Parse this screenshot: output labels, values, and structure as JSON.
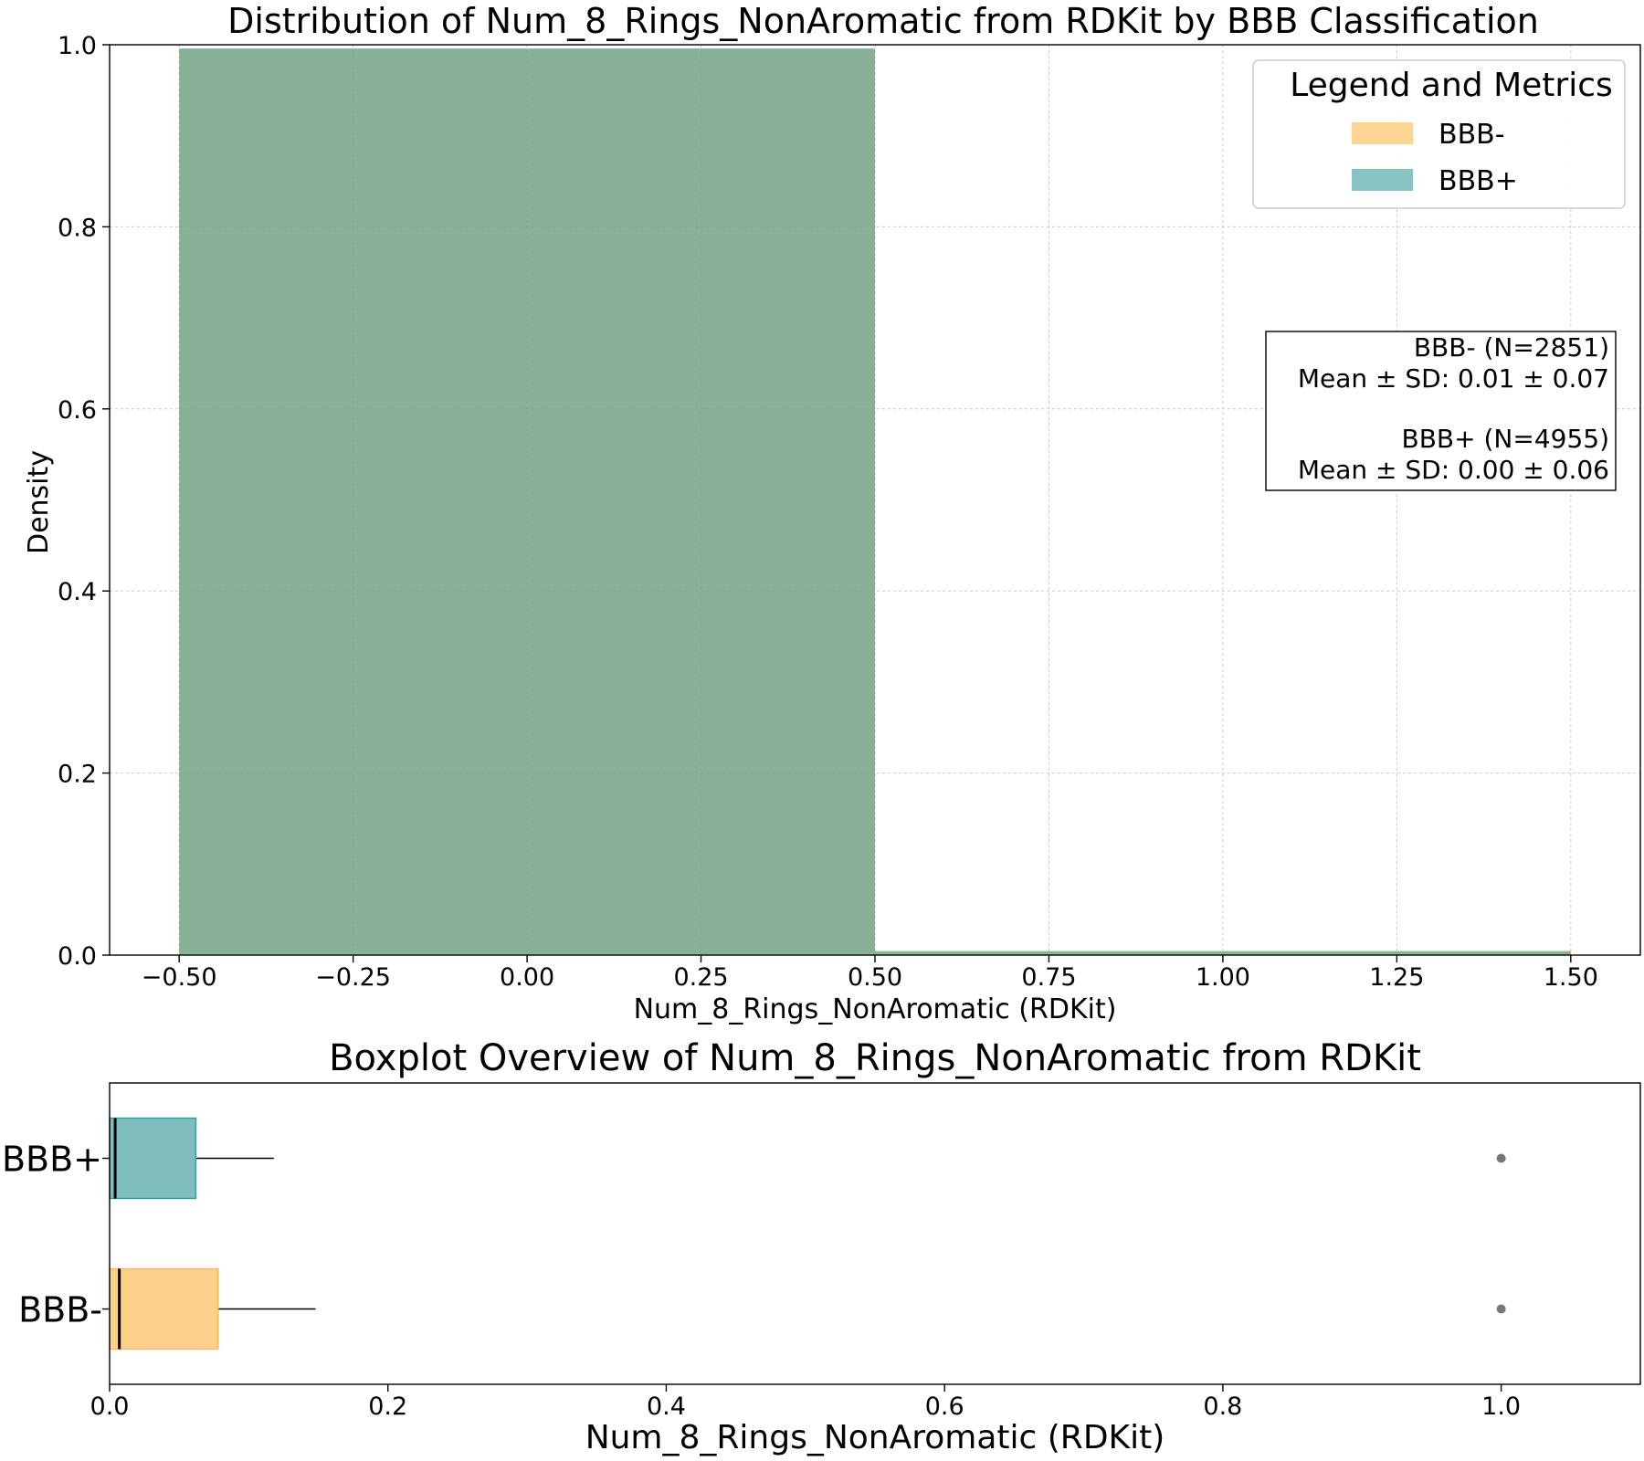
{
  "colors": {
    "bbb_minus": "#fdb94d",
    "bbb_plus": "#3a9a9b",
    "overlap": "#80a87e",
    "flier": "#777777",
    "text": "#000000"
  },
  "chart_data": [
    {
      "type": "histogram",
      "title": "Distribution of Num_8_Rings_NonAromatic from RDKit by BBB Classification",
      "xlabel": "Num_8_Rings_NonAromatic (RDKit)",
      "ylabel": "Density",
      "xlim": [
        -0.6,
        1.6
      ],
      "ylim": [
        0,
        1.0
      ],
      "xticks": [
        -0.5,
        -0.25,
        0.0,
        0.25,
        0.5,
        0.75,
        1.0,
        1.25,
        1.5
      ],
      "xtick_labels": [
        "−0.50",
        "−0.25",
        "0.00",
        "0.25",
        "0.50",
        "0.75",
        "1.00",
        "1.25",
        "1.50"
      ],
      "yticks": [
        0.0,
        0.2,
        0.4,
        0.6,
        0.8,
        1.0
      ],
      "ytick_labels": [
        "0.0",
        "0.2",
        "0.4",
        "0.6",
        "0.8",
        "1.0"
      ],
      "grid": true,
      "bin_edges": [
        -0.5,
        0.5,
        1.5
      ],
      "series": [
        {
          "name": "BBB-",
          "color": "#fdb94d",
          "density": [
            0.995,
            0.005
          ]
        },
        {
          "name": "BBB+",
          "color": "#3a9a9b",
          "density": [
            0.996,
            0.004
          ]
        }
      ],
      "legend": {
        "title": "Legend and Metrics",
        "placement": "top-right",
        "entries": [
          "BBB-",
          "BBB+"
        ]
      },
      "metrics_box": {
        "placement": "right",
        "lines": [
          "BBB- (N=2851)",
          "Mean ± SD: 0.01 ± 0.07",
          "",
          "BBB+ (N=4955)",
          "Mean ± SD: 0.00 ± 0.06"
        ]
      }
    },
    {
      "type": "boxplot",
      "title": "Boxplot Overview of Num_8_Rings_NonAromatic from RDKit",
      "xlabel": "Num_8_Rings_NonAromatic (RDKit)",
      "xlim": [
        0,
        1.1
      ],
      "xticks": [
        0.0,
        0.2,
        0.4,
        0.6,
        0.8,
        1.0
      ],
      "xtick_labels": [
        "0.0",
        "0.2",
        "0.4",
        "0.6",
        "0.8",
        "1.0"
      ],
      "categories": [
        "BBB+",
        "BBB-"
      ],
      "boxes": [
        {
          "name": "BBB+",
          "color": "#3a9a9b",
          "whisker_low": 0.0,
          "q1": 0.0,
          "median": 0.004,
          "q3": 0.062,
          "whisker_high": 0.118,
          "fliers": [
            1.0
          ]
        },
        {
          "name": "BBB-",
          "color": "#fdb94d",
          "whisker_low": 0.0,
          "q1": 0.0,
          "median": 0.007,
          "q3": 0.078,
          "whisker_high": 0.148,
          "fliers": [
            1.0
          ]
        }
      ]
    }
  ]
}
